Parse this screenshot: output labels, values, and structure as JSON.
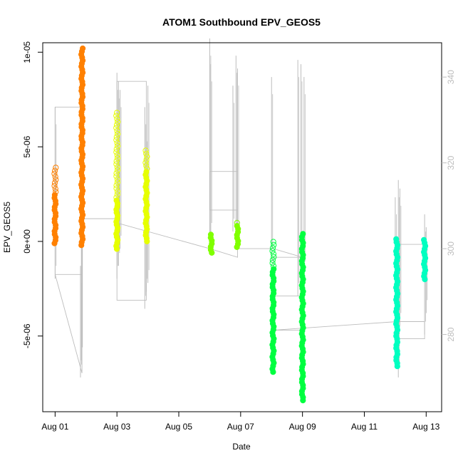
{
  "chart_data": {
    "type": "scatter",
    "title": "ATOM1 Southbound EPV_GEOS5",
    "xlabel": "Date",
    "ylabel": "EPV_GEOS5",
    "x_unit": "days (Aug 2016 day-of-month)",
    "xlim": [
      0.6,
      13.5
    ],
    "ylim": [
      -9e-06,
      1.05e-05
    ],
    "x_ticks": [
      {
        "value": 1,
        "label": "Aug 01"
      },
      {
        "value": 3,
        "label": "Aug 03"
      },
      {
        "value": 5,
        "label": "Aug 05"
      },
      {
        "value": 7,
        "label": "Aug 07"
      },
      {
        "value": 9,
        "label": "Aug 09"
      },
      {
        "value": 11,
        "label": "Aug 11"
      },
      {
        "value": 13,
        "label": "Aug 13"
      }
    ],
    "y_ticks": [
      {
        "value": -5e-06,
        "label": "-5e-06"
      },
      {
        "value": 0,
        "label": "0e+00"
      },
      {
        "value": 5e-06,
        "label": "5e-06"
      },
      {
        "value": 1e-05,
        "label": "1e-05"
      }
    ],
    "right_axis": {
      "ylim": [
        262,
        348
      ],
      "ticks": [
        {
          "value": 280,
          "label": "280"
        },
        {
          "value": 300,
          "label": "300"
        },
        {
          "value": 320,
          "label": "320"
        },
        {
          "value": 340,
          "label": "340"
        }
      ],
      "color": "#bdbdbd"
    },
    "grid": false,
    "series": [
      {
        "color": "#ff8000",
        "segments": [
          {
            "x": 1.0,
            "ymin": -1e-07,
            "ymax": 4e-06,
            "filled_max": 2.6e-06
          },
          {
            "x": 1.87,
            "ymin": -2e-07,
            "ymax": 1.03e-05,
            "filled_max": 1.03e-05
          }
        ]
      },
      {
        "color": "#e6ff00",
        "segments": [
          {
            "x": 3.0,
            "ymin": -4e-07,
            "ymax": 6.8e-06,
            "filled_max": 2.3e-06
          },
          {
            "x": 3.95,
            "ymin": 0,
            "ymax": 4.8e-06,
            "filled_max": 3.8e-06
          }
        ]
      },
      {
        "color": "#80ff00",
        "segments": [
          {
            "x": 6.05,
            "ymin": -6e-07,
            "ymax": 4e-07,
            "filled_max": 4e-07
          },
          {
            "x": 6.9,
            "ymin": -3e-07,
            "ymax": 1.1e-06,
            "filled_max": 9e-07
          }
        ]
      },
      {
        "color": "#00ff40",
        "segments": [
          {
            "x": 8.05,
            "ymin": -6.9e-06,
            "ymax": 0,
            "filled_max": -1.3e-06
          },
          {
            "x": 9.0,
            "ymin": -8.4e-06,
            "ymax": 5e-07,
            "filled_max": 5e-07
          }
        ]
      },
      {
        "color": "#00ffc0",
        "segments": [
          {
            "x": 12.05,
            "ymin": -6.6e-06,
            "ymax": 1.5e-07,
            "filled_max": 1.5e-07
          },
          {
            "x": 12.95,
            "ymin": -2e-06,
            "ymax": 2e-07,
            "filled_max": 2e-07
          }
        ]
      }
    ],
    "right_axis_trace": {
      "color": "#bdbdbd",
      "points": [
        [
          1.0,
          294
        ],
        [
          1.0,
          333
        ],
        [
          1.87,
          333
        ],
        [
          1.87,
          294
        ],
        [
          1.0,
          294
        ],
        [
          1.87,
          271
        ],
        [
          1.87,
          307
        ],
        [
          3.0,
          307
        ],
        [
          3.0,
          339
        ],
        [
          3.95,
          339
        ],
        [
          3.95,
          288
        ],
        [
          3.0,
          288
        ],
        [
          3.0,
          306
        ],
        [
          6.0,
          300
        ],
        [
          6.9,
          298
        ],
        [
          6.9,
          309
        ],
        [
          6.0,
          309
        ],
        [
          6.0,
          318
        ],
        [
          6.9,
          318
        ],
        [
          6.9,
          300
        ],
        [
          8.05,
          300
        ],
        [
          9.0,
          298
        ],
        [
          8.05,
          298
        ],
        [
          8.05,
          289
        ],
        [
          9.0,
          289
        ],
        [
          9.0,
          281
        ],
        [
          8.05,
          281
        ],
        [
          12.05,
          283
        ],
        [
          12.95,
          283
        ],
        [
          12.95,
          279
        ],
        [
          12.05,
          279
        ],
        [
          12.05,
          301
        ],
        [
          12.95,
          301
        ]
      ],
      "spikes": [
        {
          "x": 1.0,
          "lo": 293,
          "hi": 333
        },
        {
          "x": 1.82,
          "lo": 270,
          "hi": 296
        },
        {
          "x": 1.85,
          "lo": 274,
          "hi": 306
        },
        {
          "x": 3.0,
          "lo": 293,
          "hi": 341
        },
        {
          "x": 3.05,
          "lo": 296,
          "hi": 339
        },
        {
          "x": 3.1,
          "lo": 300,
          "hi": 337
        },
        {
          "x": 3.9,
          "lo": 286,
          "hi": 333
        },
        {
          "x": 3.95,
          "lo": 290,
          "hi": 329
        },
        {
          "x": 4.0,
          "lo": 292,
          "hi": 338
        },
        {
          "x": 6.0,
          "lo": 300,
          "hi": 349
        },
        {
          "x": 6.03,
          "lo": 303,
          "hi": 343
        },
        {
          "x": 6.75,
          "lo": 304,
          "hi": 338
        },
        {
          "x": 6.85,
          "lo": 302,
          "hi": 345
        },
        {
          "x": 6.9,
          "lo": 300,
          "hi": 342
        },
        {
          "x": 8.0,
          "lo": 297,
          "hi": 340
        },
        {
          "x": 8.85,
          "lo": 289,
          "hi": 344
        },
        {
          "x": 8.95,
          "lo": 292,
          "hi": 343
        },
        {
          "x": 9.05,
          "lo": 294,
          "hi": 340
        },
        {
          "x": 12.0,
          "lo": 278,
          "hi": 312
        },
        {
          "x": 12.1,
          "lo": 270,
          "hi": 316
        },
        {
          "x": 12.15,
          "lo": 282,
          "hi": 314
        },
        {
          "x": 12.95,
          "lo": 280,
          "hi": 308
        },
        {
          "x": 13.0,
          "lo": 285,
          "hi": 305
        }
      ]
    }
  }
}
